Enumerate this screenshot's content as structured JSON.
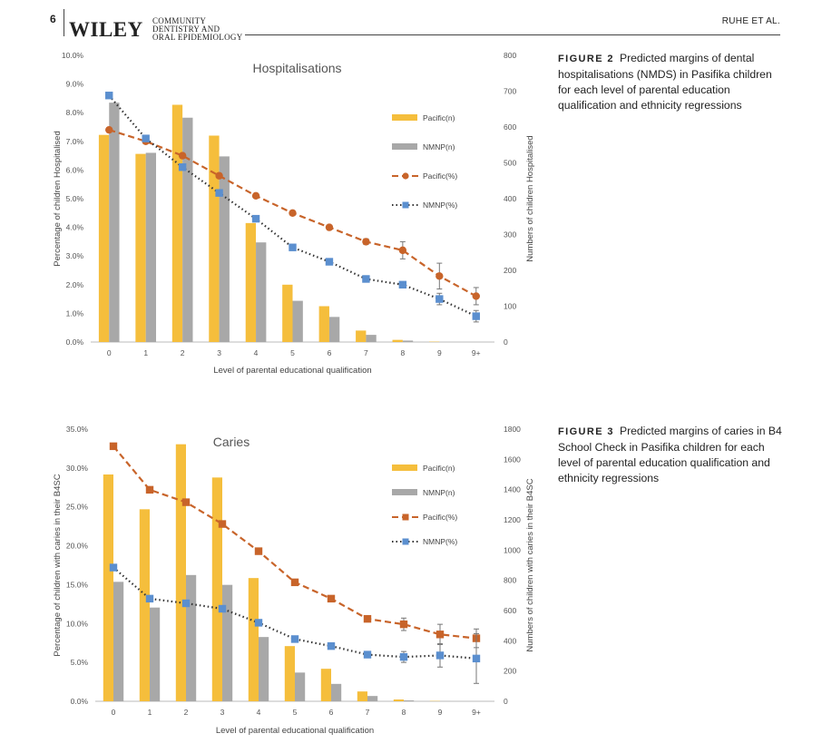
{
  "header": {
    "page_number": "6",
    "publisher": "WILEY",
    "journal_lines": [
      "COMMUNITY",
      "DENTISTRY AND",
      "ORAL EPIDEMIOLOGY"
    ],
    "running_head": "RUHE ET AL."
  },
  "figures": [
    {
      "label": "FIGURE 2",
      "caption": "Predicted margins of dental hospitalisations (NMDS) in Pasifika children for each level of parental education qualification and ethnicity regressions"
    },
    {
      "label": "FIGURE 3",
      "caption": "Predicted margins of caries in B4 School Check in Pasifika children for each level of parental education qualification and ethnicity regressions"
    }
  ],
  "colors": {
    "pacific": "#F5BE3C",
    "nmnp": "#A8A8A8",
    "pacific_line": "#C8642A",
    "nmnp_line": "#5B8FCF"
  },
  "chart_data": [
    {
      "type": "bar",
      "title": "Hospitalisations",
      "xlabel": "Level of parental educational qualification",
      "ylabel": "Percentage of children Hospitalised",
      "y2label": "Numbers of children Hospitalised",
      "categories": [
        "0",
        "1",
        "2",
        "3",
        "4",
        "5",
        "6",
        "7",
        "8",
        "9",
        "9+"
      ],
      "ylim": [
        0,
        10
      ],
      "yticks": [
        "0.0%",
        "1.0%",
        "2.0%",
        "3.0%",
        "4.0%",
        "5.0%",
        "6.0%",
        "7.0%",
        "8.0%",
        "9.0%",
        "10.0%"
      ],
      "y2lim": [
        0,
        800
      ],
      "y2ticks": [
        "0",
        "100",
        "200",
        "300",
        "400",
        "500",
        "600",
        "700",
        "800"
      ],
      "legend_position": "right",
      "series": [
        {
          "name": "Pacific(n)",
          "kind": "bar",
          "axis": "y2",
          "values": [
            578,
            525,
            662,
            576,
            332,
            160,
            100,
            32,
            6,
            1,
            0
          ]
        },
        {
          "name": "NMNP(n)",
          "kind": "bar",
          "axis": "y2",
          "values": [
            668,
            528,
            626,
            518,
            278,
            115,
            70,
            20,
            4,
            0,
            0
          ]
        },
        {
          "name": "Pacific(%)",
          "kind": "line",
          "axis": "y",
          "values": [
            7.4,
            7.0,
            6.5,
            5.8,
            5.1,
            4.5,
            4.0,
            3.5,
            3.2,
            2.3,
            1.6
          ],
          "error": [
            0,
            0,
            0,
            0,
            0,
            0,
            0,
            0.1,
            0.3,
            0.45,
            0.3
          ]
        },
        {
          "name": "NMNP(%)",
          "kind": "line",
          "axis": "y",
          "values": [
            8.6,
            7.1,
            6.1,
            5.2,
            4.3,
            3.3,
            2.8,
            2.2,
            2.0,
            1.5,
            0.9
          ],
          "error": [
            0,
            0,
            0,
            0,
            0,
            0,
            0,
            0.05,
            0.1,
            0.2,
            0.2
          ]
        }
      ]
    },
    {
      "type": "bar",
      "title": "Caries",
      "xlabel": "Level of parental educational qualification",
      "ylabel": "Percentage of children with caries in their B4SC",
      "y2label": "Numbers of children with caries in their B4SC",
      "categories": [
        "0",
        "1",
        "2",
        "3",
        "4",
        "5",
        "6",
        "7",
        "8",
        "9",
        "9+"
      ],
      "ylim": [
        0,
        35
      ],
      "yticks": [
        "0.0%",
        "5.0%",
        "10.0%",
        "15.0%",
        "20.0%",
        "25.0%",
        "30.0%",
        "35.0%"
      ],
      "y2lim": [
        0,
        1800
      ],
      "y2ticks": [
        "0",
        "200",
        "400",
        "600",
        "800",
        "1000",
        "1200",
        "1400",
        "1600",
        "1800"
      ],
      "legend_position": "right",
      "series": [
        {
          "name": "Pacific(n)",
          "kind": "bar",
          "axis": "y2",
          "values": [
            1500,
            1270,
            1700,
            1480,
            815,
            365,
            215,
            65,
            12,
            2,
            0
          ]
        },
        {
          "name": "NMNP(n)",
          "kind": "bar",
          "axis": "y2",
          "values": [
            790,
            620,
            835,
            770,
            425,
            190,
            115,
            35,
            6,
            1,
            0
          ]
        },
        {
          "name": "Pacific(%)",
          "kind": "line",
          "axis": "y",
          "values": [
            32.8,
            27.2,
            25.6,
            22.8,
            19.3,
            15.3,
            13.2,
            10.6,
            9.9,
            8.6,
            8.1
          ],
          "error": [
            0,
            0,
            0,
            0,
            0,
            0,
            0,
            0,
            0.8,
            1.3,
            1.2
          ]
        },
        {
          "name": "NMNP(%)",
          "kind": "line",
          "axis": "y",
          "values": [
            17.2,
            13.2,
            12.6,
            11.9,
            10.1,
            8.0,
            7.1,
            6.0,
            5.7,
            5.9,
            5.5
          ],
          "error": [
            0,
            0,
            0,
            0,
            0,
            0,
            0,
            0,
            0.7,
            1.5,
            3.2
          ]
        }
      ]
    }
  ]
}
